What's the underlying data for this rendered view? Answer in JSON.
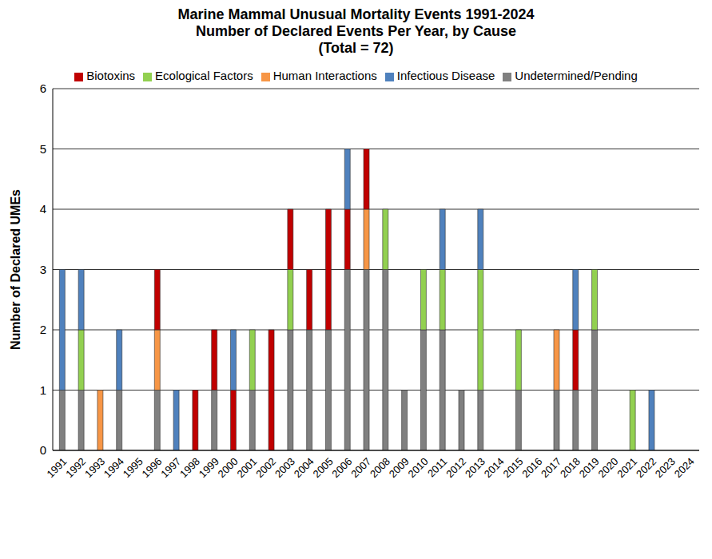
{
  "chart_data": {
    "type": "bar",
    "title": "Marine Mammal Unusual Mortality Events 1991-2024",
    "subtitle": "Number of Declared Events Per Year, by Cause",
    "annotation": "(Total = 72)",
    "y_label": "Number of Declared UMEs",
    "categories": [
      "1991",
      "1992",
      "1993",
      "1994",
      "1995",
      "1996",
      "1997",
      "1998",
      "1999",
      "2000",
      "2001",
      "2002",
      "2003",
      "2004",
      "2005",
      "2006",
      "2007",
      "2008",
      "2009",
      "2010",
      "2011",
      "2012",
      "2013",
      "2014",
      "2015",
      "2016",
      "2017",
      "2018",
      "2019",
      "2020",
      "2021",
      "2022",
      "2023",
      "2024"
    ],
    "series": [
      {
        "name": "Undetermined/Pending",
        "color": "#808080",
        "values": [
          1,
          1,
          0,
          1,
          0,
          1,
          0,
          0,
          1,
          0,
          1,
          0,
          2,
          2,
          2,
          3,
          3,
          3,
          1,
          2,
          2,
          1,
          1,
          0,
          1,
          0,
          1,
          1,
          2,
          0,
          0,
          0,
          0,
          0
        ]
      },
      {
        "name": "Human Interactions",
        "color": "#F79646",
        "values": [
          0,
          0,
          1,
          0,
          0,
          1,
          0,
          0,
          0,
          0,
          0,
          0,
          0,
          0,
          0,
          0,
          1,
          0,
          0,
          0,
          0,
          0,
          0,
          0,
          0,
          0,
          1,
          0,
          0,
          0,
          0,
          0,
          0,
          0
        ]
      },
      {
        "name": "Ecological Factors",
        "color": "#92D050",
        "values": [
          0,
          1,
          0,
          0,
          0,
          0,
          0,
          0,
          0,
          0,
          1,
          0,
          1,
          0,
          0,
          0,
          0,
          1,
          0,
          1,
          1,
          0,
          2,
          0,
          1,
          0,
          0,
          0,
          1,
          0,
          1,
          0,
          0,
          0
        ]
      },
      {
        "name": "Biotoxins",
        "color": "#C00000",
        "values": [
          0,
          0,
          0,
          0,
          0,
          1,
          0,
          1,
          1,
          1,
          0,
          2,
          1,
          1,
          2,
          1,
          1,
          0,
          0,
          0,
          0,
          0,
          0,
          0,
          0,
          0,
          0,
          1,
          0,
          0,
          0,
          0,
          0,
          0
        ]
      },
      {
        "name": "Infectious Disease",
        "color": "#4F81BD",
        "values": [
          2,
          1,
          0,
          1,
          0,
          0,
          1,
          0,
          0,
          1,
          0,
          0,
          0,
          0,
          0,
          1,
          0,
          0,
          0,
          0,
          1,
          0,
          1,
          0,
          0,
          0,
          0,
          1,
          0,
          0,
          0,
          1,
          0,
          0
        ]
      }
    ],
    "ylim": [
      0,
      6
    ],
    "yticks": [
      0,
      1,
      2,
      3,
      4,
      5,
      6
    ],
    "grid": true,
    "stacked": true,
    "legend": "top"
  }
}
